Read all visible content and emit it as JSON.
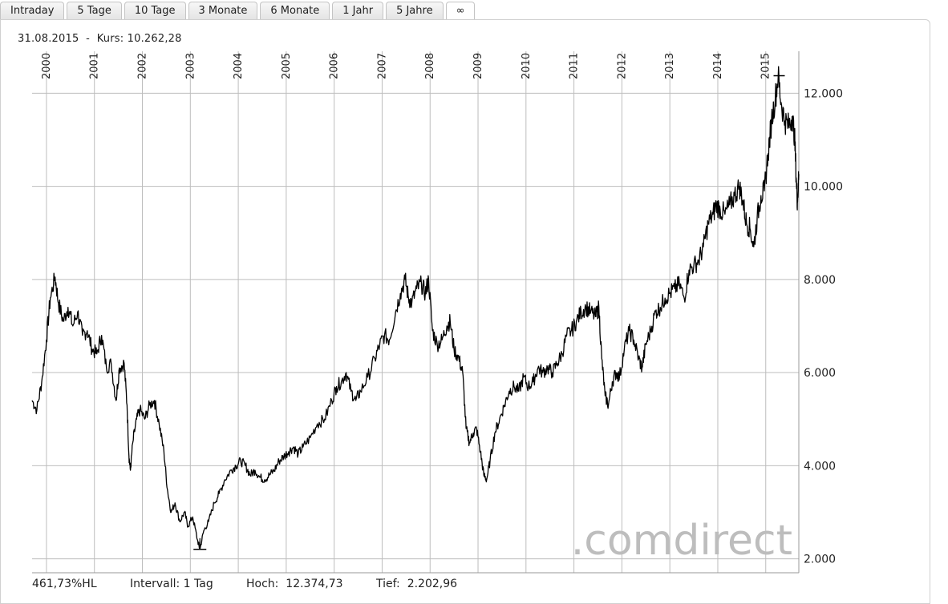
{
  "tabs": [
    {
      "label": "Intraday"
    },
    {
      "label": "5 Tage"
    },
    {
      "label": "10 Tage"
    },
    {
      "label": "3 Monate"
    },
    {
      "label": "6 Monate"
    },
    {
      "label": "1 Jahr"
    },
    {
      "label": "5 Jahre"
    },
    {
      "label": "∞"
    }
  ],
  "header": {
    "date": "31.08.2015",
    "sep": "-",
    "kurs_label": "Kurs:",
    "kurs_value": "10.262,28"
  },
  "footer": {
    "perf": "461,73%HL",
    "intervall": "Intervall: 1 Tag",
    "hoch_label": "Hoch:",
    "hoch_value": "12.374,73",
    "tief_label": "Tief:",
    "tief_value": "2.202,96"
  },
  "watermark": ".comdirect",
  "chart_data": {
    "type": "line",
    "grid": true,
    "x_labels": [
      "2000",
      "2001",
      "2002",
      "2003",
      "2004",
      "2005",
      "2006",
      "2007",
      "2008",
      "2009",
      "2010",
      "2011",
      "2012",
      "2013",
      "2014",
      "2015"
    ],
    "y_ticks": [
      {
        "value": 2000,
        "label": "2.000"
      },
      {
        "value": 4000,
        "label": "4.000"
      },
      {
        "value": 6000,
        "label": "6.000"
      },
      {
        "value": 8000,
        "label": "8.000"
      },
      {
        "value": 10000,
        "label": "10.000"
      },
      {
        "value": 12000,
        "label": "12.000"
      }
    ],
    "ylim": [
      1700,
      12900
    ],
    "xlim": [
      1999.7,
      2015.69
    ],
    "high_marker": {
      "x": 2015.28,
      "y": 12374.73
    },
    "low_marker": {
      "x": 2003.2,
      "y": 2202.96
    },
    "series": [
      {
        "points": [
          [
            1999.7,
            5400
          ],
          [
            1999.8,
            5200
          ],
          [
            1999.9,
            5800
          ],
          [
            2000.0,
            6700
          ],
          [
            2000.08,
            7600
          ],
          [
            2000.18,
            8050
          ],
          [
            2000.25,
            7500
          ],
          [
            2000.35,
            7100
          ],
          [
            2000.45,
            7400
          ],
          [
            2000.55,
            7000
          ],
          [
            2000.65,
            7300
          ],
          [
            2000.75,
            6800
          ],
          [
            2000.85,
            6900
          ],
          [
            2000.95,
            6500
          ],
          [
            2001.05,
            6400
          ],
          [
            2001.15,
            6800
          ],
          [
            2001.25,
            6100
          ],
          [
            2001.35,
            6200
          ],
          [
            2001.45,
            5400
          ],
          [
            2001.52,
            6100
          ],
          [
            2001.62,
            6200
          ],
          [
            2001.68,
            5300
          ],
          [
            2001.72,
            4200
          ],
          [
            2001.75,
            3900
          ],
          [
            2001.8,
            4500
          ],
          [
            2001.88,
            5000
          ],
          [
            2001.95,
            5200
          ],
          [
            2002.05,
            5000
          ],
          [
            2002.15,
            5300
          ],
          [
            2002.25,
            5400
          ],
          [
            2002.35,
            4900
          ],
          [
            2002.45,
            4300
          ],
          [
            2002.52,
            3500
          ],
          [
            2002.6,
            3000
          ],
          [
            2002.68,
            3200
          ],
          [
            2002.78,
            2800
          ],
          [
            2002.88,
            3000
          ],
          [
            2002.95,
            2700
          ],
          [
            2003.05,
            2900
          ],
          [
            2003.15,
            2400
          ],
          [
            2003.2,
            2203
          ],
          [
            2003.28,
            2600
          ],
          [
            2003.38,
            2800
          ],
          [
            2003.5,
            3200
          ],
          [
            2003.6,
            3400
          ],
          [
            2003.72,
            3700
          ],
          [
            2003.85,
            3900
          ],
          [
            2003.95,
            4000
          ],
          [
            2004.05,
            4100
          ],
          [
            2004.15,
            4000
          ],
          [
            2004.25,
            3800
          ],
          [
            2004.35,
            3900
          ],
          [
            2004.45,
            3750
          ],
          [
            2004.55,
            3700
          ],
          [
            2004.65,
            3800
          ],
          [
            2004.75,
            3900
          ],
          [
            2004.85,
            4100
          ],
          [
            2004.95,
            4200
          ],
          [
            2005.05,
            4300
          ],
          [
            2005.15,
            4400
          ],
          [
            2005.25,
            4250
          ],
          [
            2005.35,
            4400
          ],
          [
            2005.5,
            4600
          ],
          [
            2005.65,
            4900
          ],
          [
            2005.8,
            5000
          ],
          [
            2005.95,
            5400
          ],
          [
            2006.05,
            5700
          ],
          [
            2006.15,
            5800
          ],
          [
            2006.25,
            6000
          ],
          [
            2006.35,
            5600
          ],
          [
            2006.45,
            5400
          ],
          [
            2006.55,
            5600
          ],
          [
            2006.7,
            5900
          ],
          [
            2006.85,
            6300
          ],
          [
            2006.95,
            6600
          ],
          [
            2007.05,
            6800
          ],
          [
            2007.15,
            6700
          ],
          [
            2007.28,
            7300
          ],
          [
            2007.38,
            7700
          ],
          [
            2007.48,
            8000
          ],
          [
            2007.55,
            7600
          ],
          [
            2007.62,
            7500
          ],
          [
            2007.72,
            7800
          ],
          [
            2007.82,
            7900
          ],
          [
            2007.9,
            7700
          ],
          [
            2007.97,
            8000
          ],
          [
            2008.05,
            6900
          ],
          [
            2008.15,
            6600
          ],
          [
            2008.25,
            6700
          ],
          [
            2008.35,
            7000
          ],
          [
            2008.42,
            7100
          ],
          [
            2008.5,
            6500
          ],
          [
            2008.6,
            6300
          ],
          [
            2008.68,
            6000
          ],
          [
            2008.75,
            4800
          ],
          [
            2008.82,
            4500
          ],
          [
            2008.9,
            4700
          ],
          [
            2008.97,
            4800
          ],
          [
            2009.05,
            4300
          ],
          [
            2009.12,
            3800
          ],
          [
            2009.18,
            3700
          ],
          [
            2009.25,
            4100
          ],
          [
            2009.35,
            4700
          ],
          [
            2009.45,
            5000
          ],
          [
            2009.55,
            5300
          ],
          [
            2009.65,
            5600
          ],
          [
            2009.75,
            5700
          ],
          [
            2009.85,
            5600
          ],
          [
            2009.95,
            5900
          ],
          [
            2010.05,
            5700
          ],
          [
            2010.15,
            5800
          ],
          [
            2010.25,
            6100
          ],
          [
            2010.35,
            6000
          ],
          [
            2010.45,
            6100
          ],
          [
            2010.55,
            6000
          ],
          [
            2010.65,
            6200
          ],
          [
            2010.75,
            6400
          ],
          [
            2010.85,
            6800
          ],
          [
            2010.95,
            6900
          ],
          [
            2011.05,
            7100
          ],
          [
            2011.15,
            7300
          ],
          [
            2011.25,
            7400
          ],
          [
            2011.35,
            7300
          ],
          [
            2011.45,
            7200
          ],
          [
            2011.52,
            7400
          ],
          [
            2011.58,
            6300
          ],
          [
            2011.65,
            5500
          ],
          [
            2011.72,
            5300
          ],
          [
            2011.8,
            5800
          ],
          [
            2011.88,
            6000
          ],
          [
            2011.95,
            5900
          ],
          [
            2012.05,
            6500
          ],
          [
            2012.15,
            6900
          ],
          [
            2012.25,
            6700
          ],
          [
            2012.35,
            6300
          ],
          [
            2012.42,
            6100
          ],
          [
            2012.5,
            6600
          ],
          [
            2012.6,
            6900
          ],
          [
            2012.7,
            7300
          ],
          [
            2012.8,
            7400
          ],
          [
            2012.9,
            7600
          ],
          [
            2013.0,
            7700
          ],
          [
            2013.1,
            7800
          ],
          [
            2013.2,
            7900
          ],
          [
            2013.3,
            7600
          ],
          [
            2013.4,
            8200
          ],
          [
            2013.5,
            8300
          ],
          [
            2013.6,
            8400
          ],
          [
            2013.7,
            8700
          ],
          [
            2013.8,
            9200
          ],
          [
            2013.9,
            9400
          ],
          [
            2013.97,
            9600
          ],
          [
            2014.05,
            9500
          ],
          [
            2014.15,
            9400
          ],
          [
            2014.25,
            9600
          ],
          [
            2014.35,
            9800
          ],
          [
            2014.45,
            10000
          ],
          [
            2014.52,
            9700
          ],
          [
            2014.6,
            9200
          ],
          [
            2014.67,
            9100
          ],
          [
            2014.75,
            8700
          ],
          [
            2014.82,
            9300
          ],
          [
            2014.9,
            9800
          ],
          [
            2014.97,
            9900
          ],
          [
            2015.05,
            10700
          ],
          [
            2015.12,
            11400
          ],
          [
            2015.2,
            11900
          ],
          [
            2015.26,
            12375
          ],
          [
            2015.32,
            11800
          ],
          [
            2015.4,
            11400
          ],
          [
            2015.48,
            11300
          ],
          [
            2015.55,
            11500
          ],
          [
            2015.6,
            11100
          ],
          [
            2015.64,
            10100
          ],
          [
            2015.66,
            9650
          ],
          [
            2015.69,
            10262
          ]
        ]
      }
    ]
  }
}
